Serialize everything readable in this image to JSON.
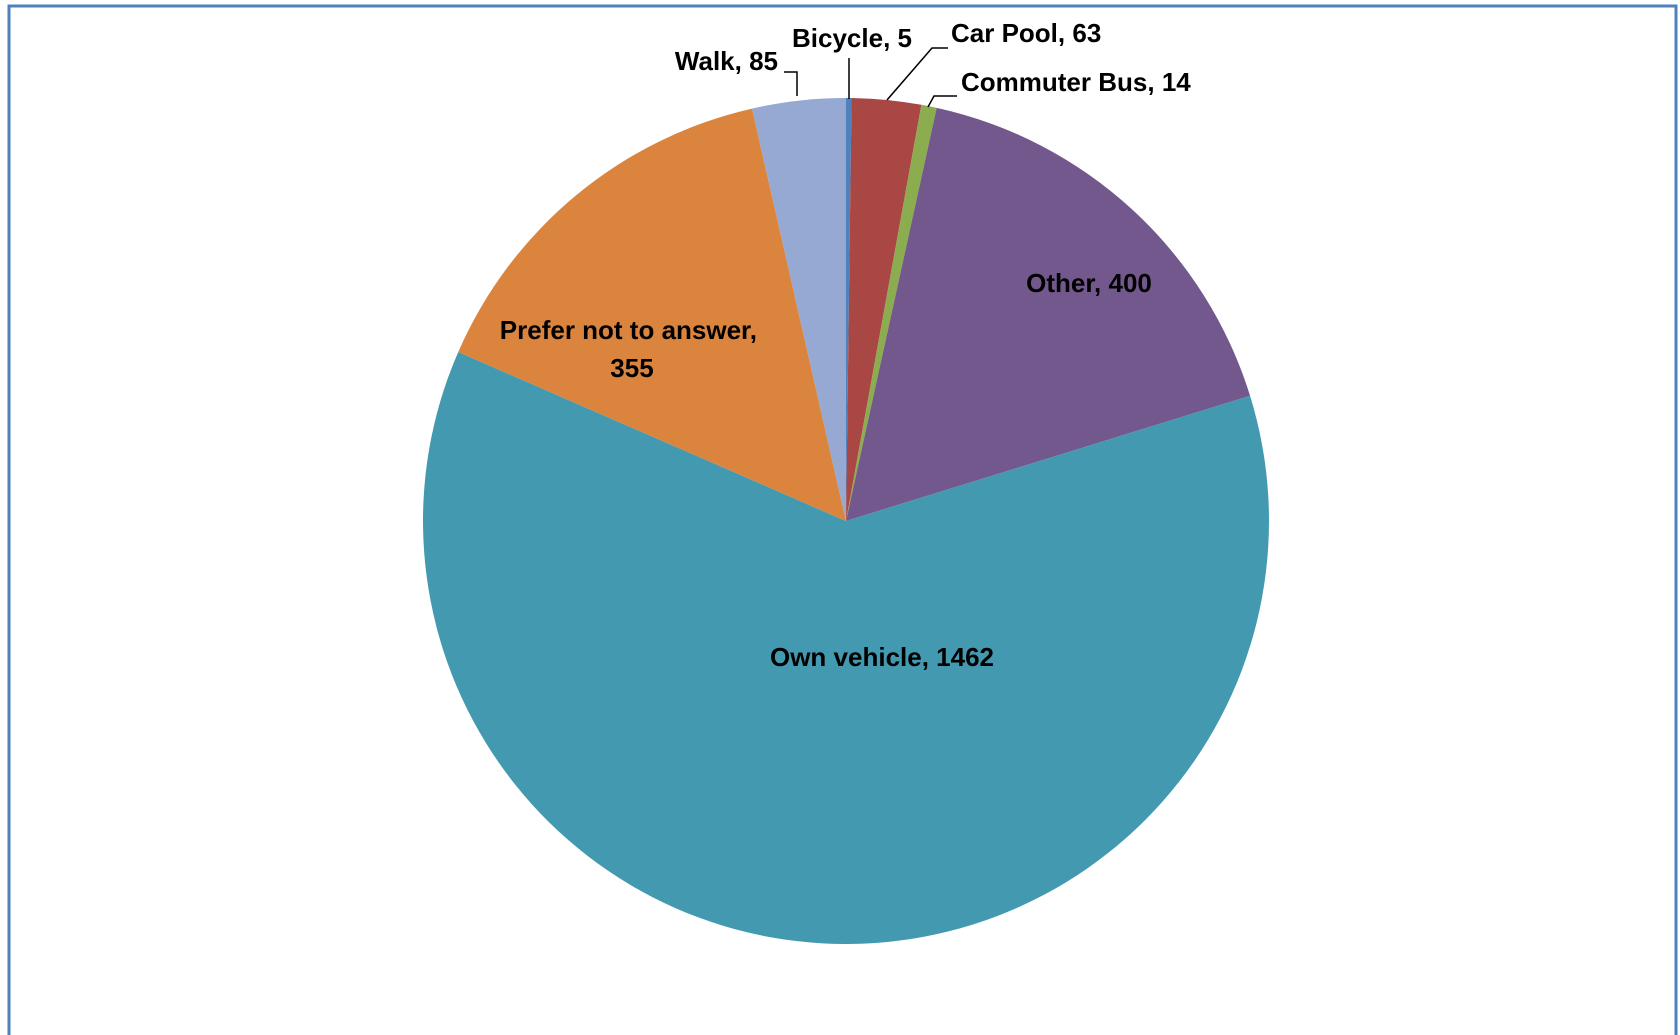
{
  "chart_data": {
    "type": "pie",
    "categories": [
      "Bicycle",
      "Car Pool",
      "Commuter Bus",
      "Other",
      "Own vehicle",
      "Prefer not to answer",
      "Walk"
    ],
    "values": [
      5,
      63,
      14,
      400,
      1462,
      355,
      85
    ],
    "colors": [
      "#4f81bd",
      "#a84744",
      "#8cac50",
      "#72588c",
      "#4399b0",
      "#db843d",
      "#95a9d2"
    ]
  }
}
